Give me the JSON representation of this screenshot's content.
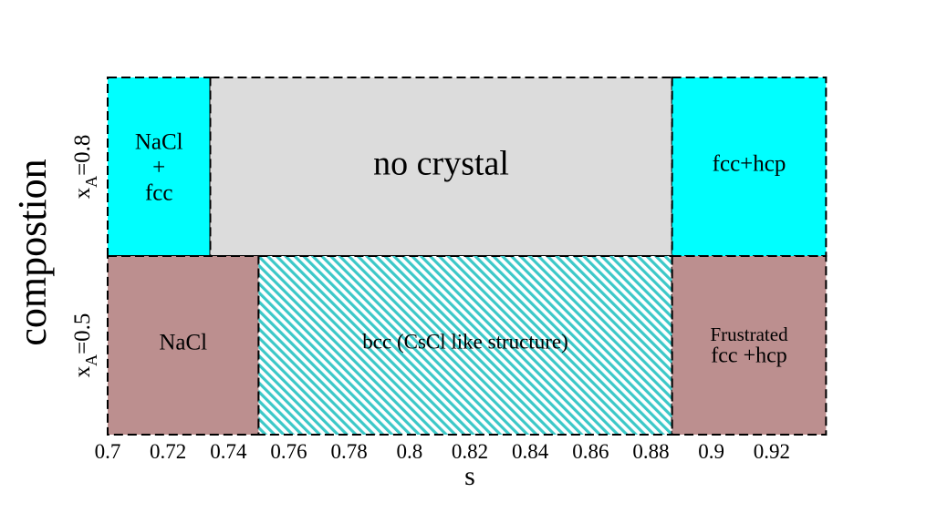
{
  "chart_data": {
    "type": "heatmap",
    "xlabel": "s",
    "ylabel": "compostion",
    "xlim": [
      0.7,
      0.94
    ],
    "x_ticks": [
      "0.7",
      "0.72",
      "0.74",
      "0.76",
      "0.78",
      "0.8",
      "0.82",
      "0.84",
      "0.86",
      "0.88",
      "0.9",
      "0.92"
    ],
    "x_tick_values": [
      0.7,
      0.72,
      0.74,
      0.76,
      0.78,
      0.8,
      0.82,
      0.84,
      0.86,
      0.88,
      0.9,
      0.92
    ],
    "rows": [
      {
        "id": "top",
        "label_var": "x",
        "label_sub": "A",
        "label_val": "=0.8",
        "value": 0.8
      },
      {
        "id": "bottom",
        "label_var": "x",
        "label_sub": "A",
        "label_val": "=0.5",
        "value": 0.5
      }
    ],
    "regions": [
      {
        "row": "top",
        "x_start": 0.7,
        "x_end": 0.734,
        "label": [
          "NaCl",
          "+",
          "fcc"
        ],
        "color": "#00ffff",
        "pattern": "solid"
      },
      {
        "row": "top",
        "x_start": 0.734,
        "x_end": 0.887,
        "label": [
          "no crystal"
        ],
        "color": "#dcdcdc",
        "pattern": "solid"
      },
      {
        "row": "top",
        "x_start": 0.887,
        "x_end": 0.938,
        "label": [
          "fcc+hcp"
        ],
        "color": "#00ffff",
        "pattern": "solid"
      },
      {
        "row": "bottom",
        "x_start": 0.7,
        "x_end": 0.75,
        "label": [
          "NaCl"
        ],
        "color": "#bc8f8f",
        "pattern": "solid"
      },
      {
        "row": "bottom",
        "x_start": 0.75,
        "x_end": 0.887,
        "label": [
          "bcc (CsCl like structure)"
        ],
        "color": "#3cc8c8",
        "pattern": "hatch"
      },
      {
        "row": "bottom",
        "x_start": 0.887,
        "x_end": 0.938,
        "label": [
          "Frustrated",
          "fcc +hcp"
        ],
        "color": "#bc8f8f",
        "pattern": "solid"
      }
    ],
    "colors": {
      "cyan": "#00ffff",
      "gray": "#dcdcdc",
      "rosy": "#bc8f8f",
      "hatch": "#3cc8c8"
    },
    "grid": false,
    "legend": "none"
  }
}
